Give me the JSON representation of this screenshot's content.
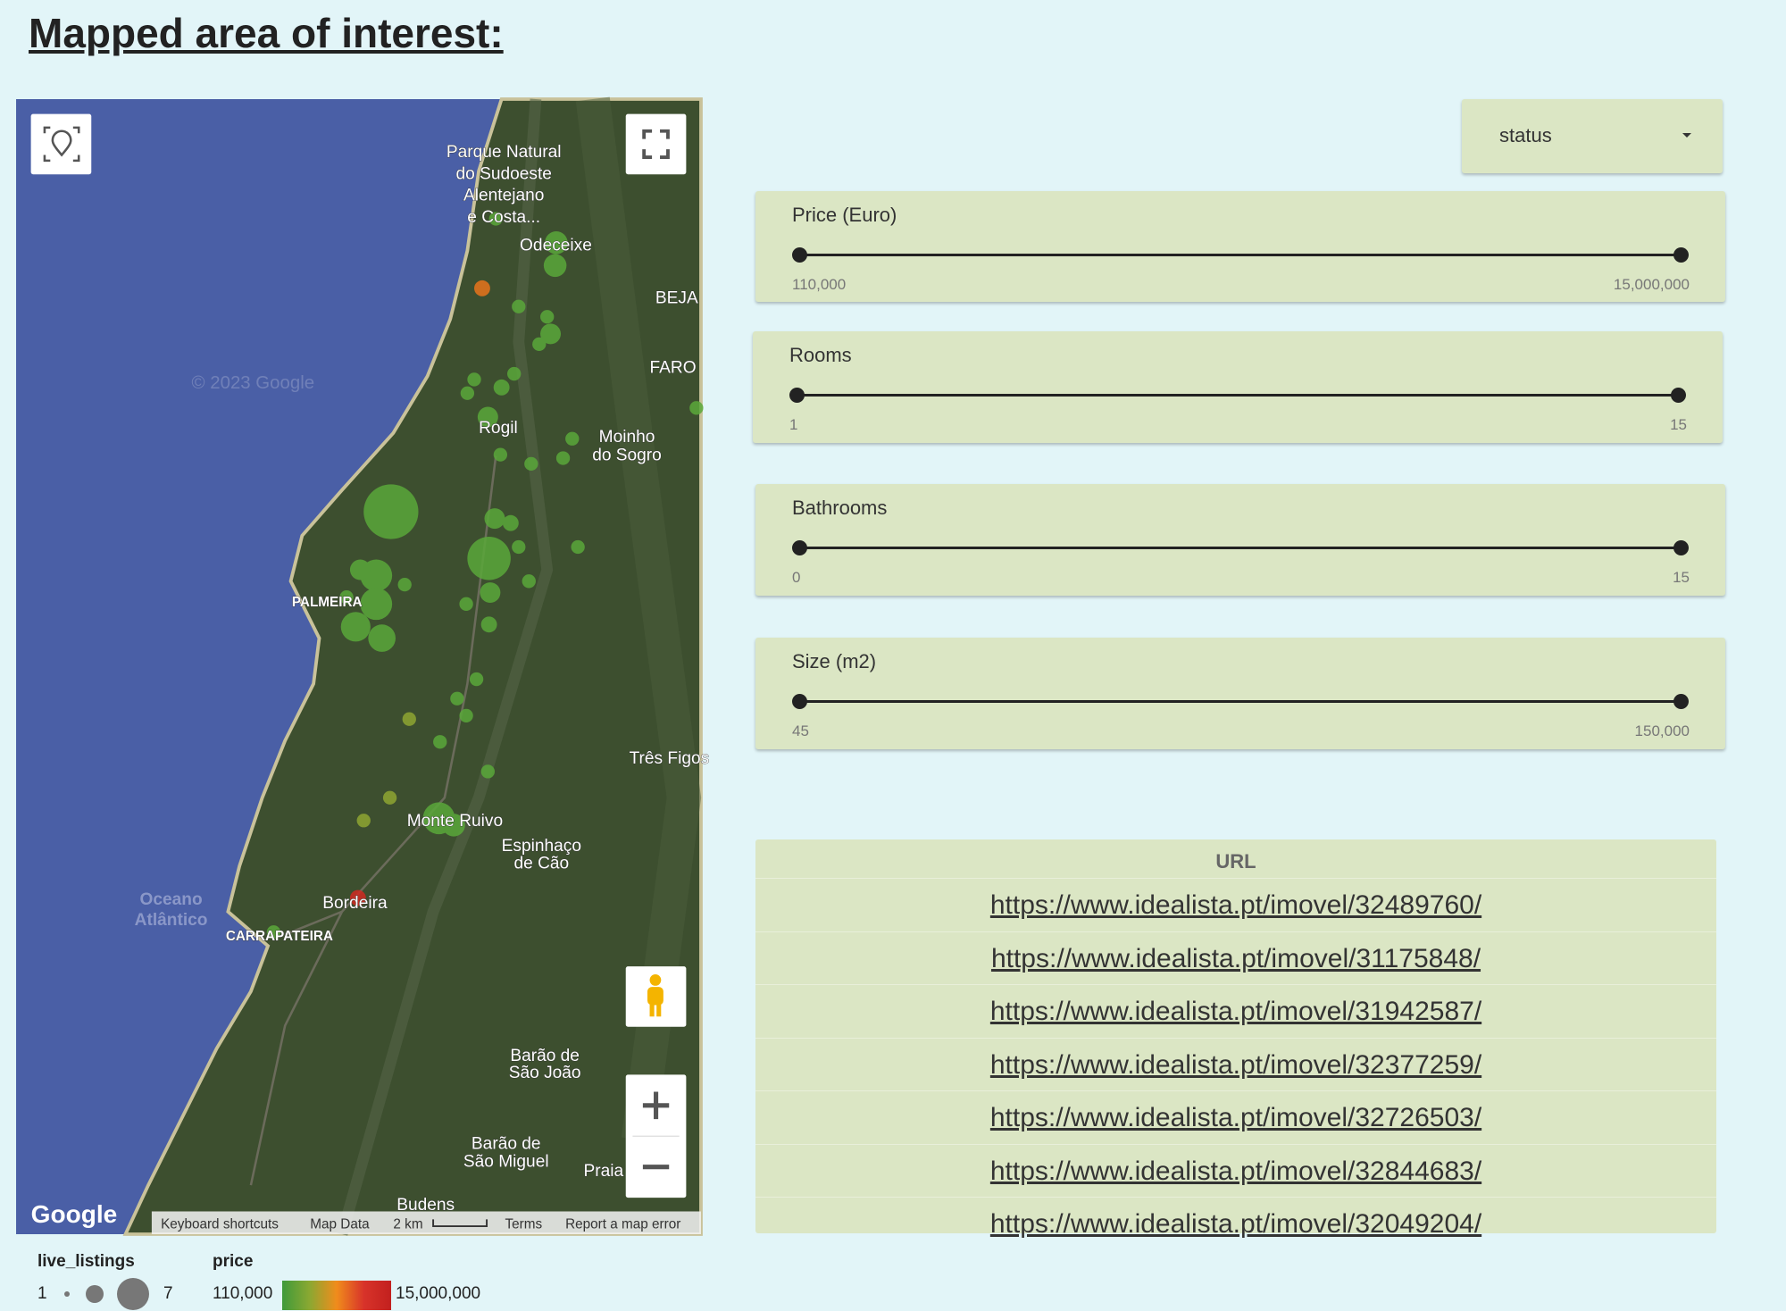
{
  "header": {
    "title": "Mapped area of interest:"
  },
  "map": {
    "labels": [
      "Parque Natural",
      "do Sudoeste",
      "Alentejano",
      "e Costa...",
      "Odeceixe",
      "BEJA",
      "FARO",
      "Rogil",
      "Moinho",
      "do Sogro",
      "PALMEIRA",
      "Três Figos",
      "Monte Ruivo",
      "Espinhaço",
      "de Cão",
      "Oceano",
      "Atlântico",
      "Bordeira",
      "CARRAPATEIRA",
      "Barão de",
      "São João",
      "Barão de",
      "São Miguel",
      "Praia",
      "Budens",
      "© 2023 Google"
    ],
    "logo": "Google",
    "attribution": [
      "Keyboard shortcuts",
      "Map Data",
      "2 km",
      "Terms",
      "Report a map error"
    ]
  },
  "legend": {
    "size_title": "live_listings",
    "size_min": "1",
    "size_max": "7",
    "color_title": "price",
    "color_min": "110,000",
    "color_max": "15,000,000"
  },
  "dropdown": {
    "label": "status"
  },
  "filters": [
    {
      "label": "Price (Euro)",
      "min": "110,000",
      "max": "15,000,000"
    },
    {
      "label": "Rooms",
      "min": "1",
      "max": "15"
    },
    {
      "label": "Bathrooms",
      "min": "0",
      "max": "15"
    },
    {
      "label": "Size (m2)",
      "min": "45",
      "max": "150,000"
    }
  ],
  "table": {
    "header": "URL",
    "rows": [
      "https://www.idealista.pt/imovel/32489760/",
      "https://www.idealista.pt/imovel/31175848/",
      "https://www.idealista.pt/imovel/31942587/",
      "https://www.idealista.pt/imovel/32377259/",
      "https://www.idealista.pt/imovel/32726503/",
      "https://www.idealista.pt/imovel/32844683/",
      "https://www.idealista.pt/imovel/32049204/"
    ]
  }
}
